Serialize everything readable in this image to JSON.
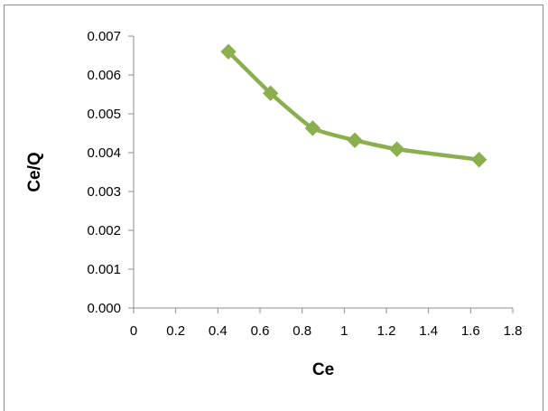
{
  "chart_data": {
    "type": "scatter",
    "title": "",
    "xlabel": "Ce",
    "ylabel": "Ce/Q",
    "xlim": [
      0,
      1.8
    ],
    "ylim": [
      0,
      0.007
    ],
    "x_ticks": [
      "0",
      "0.2",
      "0.4",
      "0.6",
      "0.8",
      "1",
      "1.2",
      "1.4",
      "1.6",
      "1.8"
    ],
    "y_ticks": [
      "0.000",
      "0.001",
      "0.002",
      "0.003",
      "0.004",
      "0.005",
      "0.006",
      "0.007"
    ],
    "grid": false,
    "legend": "none",
    "series": [
      {
        "color": "#8BAF4F",
        "marker": "diamond",
        "line": "smooth",
        "points": [
          {
            "x": 0.45,
            "y": 0.0066
          },
          {
            "x": 0.65,
            "y": 0.00553
          },
          {
            "x": 0.85,
            "y": 0.00463
          },
          {
            "x": 1.05,
            "y": 0.00432
          },
          {
            "x": 1.25,
            "y": 0.00409
          },
          {
            "x": 1.64,
            "y": 0.00382
          }
        ]
      }
    ]
  },
  "colors": {
    "axis": "#8c8c8c",
    "series": "#8BAF4F"
  }
}
